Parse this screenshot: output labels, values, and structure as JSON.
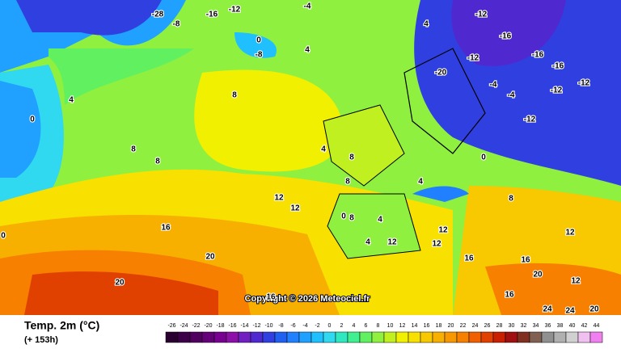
{
  "title": "Temp. 2m (°C)",
  "subtitle": "(+ 153h)",
  "copyright": "Copyright © 2026 Meteociel.fr",
  "colorbar": {
    "ticks": [
      -26,
      -24,
      -22,
      -20,
      -18,
      -16,
      -14,
      -12,
      -10,
      -8,
      -6,
      -4,
      -2,
      0,
      2,
      4,
      6,
      8,
      10,
      12,
      14,
      16,
      18,
      20,
      22,
      24,
      26,
      28,
      30,
      32,
      34,
      36,
      38,
      40,
      42,
      44
    ],
    "colors": [
      "#2a0030",
      "#3c0048",
      "#50005f",
      "#640078",
      "#780090",
      "#8c10a8",
      "#7020c0",
      "#5028d0",
      "#3040e0",
      "#2060f0",
      "#2080ff",
      "#20a0ff",
      "#20c0ff",
      "#30d8f0",
      "#30e8c0",
      "#40f090",
      "#60f060",
      "#90f040",
      "#c0f020",
      "#f0f000",
      "#f8e000",
      "#f8c800",
      "#f8b000",
      "#f89800",
      "#f88000",
      "#f06000",
      "#e04000",
      "#c82000",
      "#a01010",
      "#803020",
      "#806050",
      "#909090",
      "#b0b0b0",
      "#d0d0d0",
      "#f0c0f0",
      "#f080f0"
    ]
  },
  "labels": [
    -28,
    -16,
    -12,
    -8,
    -4,
    4,
    0,
    -8,
    4,
    0,
    4,
    8,
    8,
    4,
    8,
    8,
    8,
    12,
    12,
    16,
    20,
    16,
    20,
    8,
    4,
    0,
    4,
    12,
    12,
    16,
    -12,
    -16,
    -12,
    -16,
    -4,
    -4,
    -12,
    -12,
    0,
    4,
    8,
    12,
    12,
    16,
    20,
    24,
    24,
    20,
    16,
    12,
    -12,
    -20,
    -16,
    0
  ]
}
